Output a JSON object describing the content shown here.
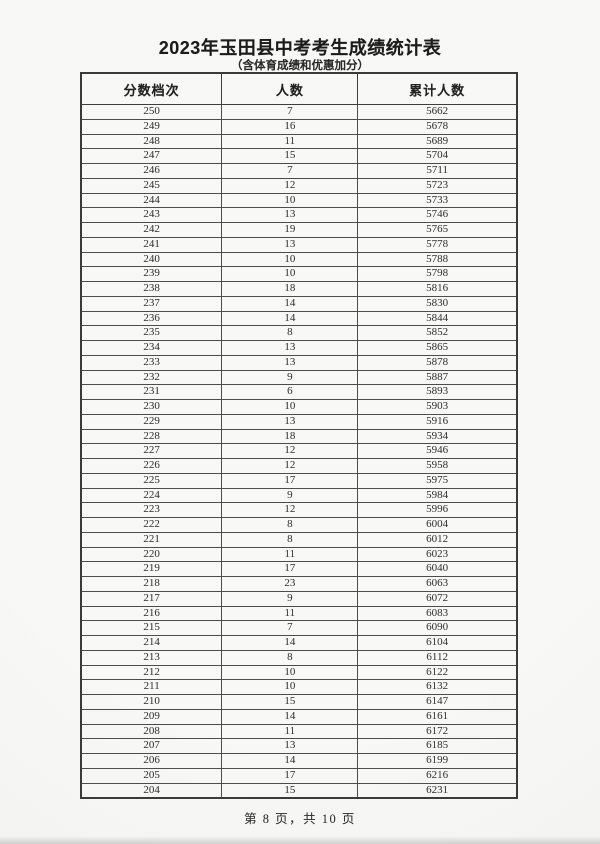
{
  "page": {
    "title": "2023年玉田县中考考生成绩统计表",
    "subtitle": "（含体育成绩和优惠加分）",
    "footer": "第 8 页，共 10 页"
  },
  "table": {
    "headers": [
      "分数档次",
      "人数",
      "累计人数"
    ],
    "rows": [
      [
        250,
        7,
        5662
      ],
      [
        249,
        16,
        5678
      ],
      [
        248,
        11,
        5689
      ],
      [
        247,
        15,
        5704
      ],
      [
        246,
        7,
        5711
      ],
      [
        245,
        12,
        5723
      ],
      [
        244,
        10,
        5733
      ],
      [
        243,
        13,
        5746
      ],
      [
        242,
        19,
        5765
      ],
      [
        241,
        13,
        5778
      ],
      [
        240,
        10,
        5788
      ],
      [
        239,
        10,
        5798
      ],
      [
        238,
        18,
        5816
      ],
      [
        237,
        14,
        5830
      ],
      [
        236,
        14,
        5844
      ],
      [
        235,
        8,
        5852
      ],
      [
        234,
        13,
        5865
      ],
      [
        233,
        13,
        5878
      ],
      [
        232,
        9,
        5887
      ],
      [
        231,
        6,
        5893
      ],
      [
        230,
        10,
        5903
      ],
      [
        229,
        13,
        5916
      ],
      [
        228,
        18,
        5934
      ],
      [
        227,
        12,
        5946
      ],
      [
        226,
        12,
        5958
      ],
      [
        225,
        17,
        5975
      ],
      [
        224,
        9,
        5984
      ],
      [
        223,
        12,
        5996
      ],
      [
        222,
        8,
        6004
      ],
      [
        221,
        8,
        6012
      ],
      [
        220,
        11,
        6023
      ],
      [
        219,
        17,
        6040
      ],
      [
        218,
        23,
        6063
      ],
      [
        217,
        9,
        6072
      ],
      [
        216,
        11,
        6083
      ],
      [
        215,
        7,
        6090
      ],
      [
        214,
        14,
        6104
      ],
      [
        213,
        8,
        6112
      ],
      [
        212,
        10,
        6122
      ],
      [
        211,
        10,
        6132
      ],
      [
        210,
        15,
        6147
      ],
      [
        209,
        14,
        6161
      ],
      [
        208,
        11,
        6172
      ],
      [
        207,
        13,
        6185
      ],
      [
        206,
        14,
        6199
      ],
      [
        205,
        17,
        6216
      ],
      [
        204,
        15,
        6231
      ]
    ]
  }
}
